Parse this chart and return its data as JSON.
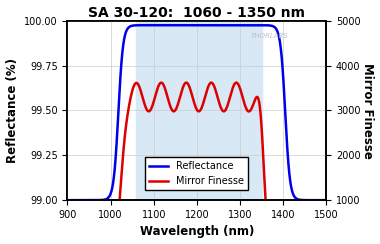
{
  "title": "SA 30-120:  1060 - 1350 nm",
  "xlabel": "Wavelength (nm)",
  "ylabel_left": "Reflectance (%)",
  "ylabel_right": "Mirror Finesse",
  "xlim": [
    900,
    1500
  ],
  "ylim_left": [
    99.0,
    100.0
  ],
  "ylim_right": [
    1000,
    5000
  ],
  "xticks": [
    900,
    1000,
    1100,
    1200,
    1300,
    1400,
    1500
  ],
  "yticks_left": [
    99.0,
    99.25,
    99.5,
    99.75,
    100.0
  ],
  "yticks_right": [
    1000,
    2000,
    3000,
    4000,
    5000
  ],
  "shaded_region": [
    1060,
    1350
  ],
  "shaded_color": "#d8e8f5",
  "line_blue_color": "#0000ee",
  "line_red_color": "#dd0000",
  "background_color": "#ffffff",
  "plot_bg_color": "#ffffff",
  "grid_color": "#cccccc",
  "watermark": "THORLABS",
  "watermark_color": "#bbbbbb",
  "legend_labels": [
    "Reflectance",
    "Mirror Finesse"
  ],
  "title_fontsize": 10,
  "axis_label_fontsize": 8.5,
  "tick_fontsize": 7,
  "legend_fontsize": 7
}
